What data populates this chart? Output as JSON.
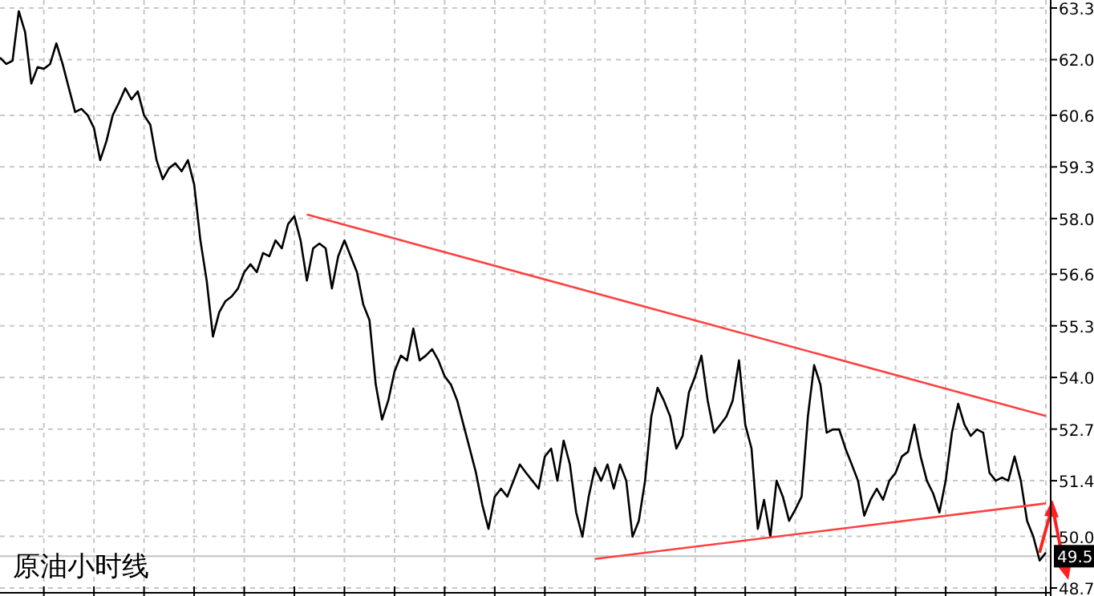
{
  "chart_data": {
    "type": "line",
    "title": "原油小时线",
    "series": [
      {
        "color": "#000000",
        "values": [
          62.05,
          61.89,
          61.97,
          63.22,
          62.7,
          61.4,
          61.81,
          61.77,
          61.89,
          62.41,
          61.89,
          61.28,
          60.68,
          60.76,
          60.6,
          60.28,
          59.47,
          59.95,
          60.6,
          60.92,
          61.28,
          61.0,
          61.2,
          60.6,
          60.36,
          59.47,
          58.99,
          59.27,
          59.39,
          59.19,
          59.47,
          58.86,
          57.45,
          56.44,
          55.03,
          55.64,
          55.92,
          56.04,
          56.24,
          56.65,
          56.85,
          56.65,
          57.13,
          57.05,
          57.45,
          57.25,
          57.86,
          58.06,
          57.45,
          56.44,
          57.25,
          57.37,
          57.25,
          56.24,
          57.05,
          57.45,
          57.05,
          56.65,
          55.84,
          55.44,
          53.82,
          52.94,
          53.42,
          54.15,
          54.55,
          54.43,
          55.23,
          54.43,
          54.55,
          54.71,
          54.43,
          54.03,
          53.82,
          53.42,
          52.81,
          52.21,
          51.6,
          50.8,
          50.19,
          51.0,
          51.2,
          51.0,
          51.4,
          51.81,
          51.6,
          51.4,
          51.2,
          52.01,
          52.21,
          51.4,
          52.41,
          51.81,
          50.6,
          49.99,
          51.0,
          51.73,
          51.4,
          51.81,
          51.2,
          51.81,
          51.4,
          49.99,
          50.39,
          51.4,
          53.02,
          53.74,
          53.42,
          53.02,
          52.21,
          52.53,
          53.62,
          54.03,
          54.55,
          53.42,
          52.61,
          52.81,
          53.02,
          53.42,
          54.43,
          52.81,
          52.21,
          50.19,
          50.92,
          49.99,
          51.4,
          51.0,
          50.39,
          50.68,
          51.0,
          53.02,
          54.31,
          53.82,
          52.61,
          52.69,
          52.69,
          52.21,
          51.81,
          51.4,
          50.52,
          50.92,
          51.2,
          50.92,
          51.4,
          51.6,
          52.01,
          52.13,
          52.81,
          52.01,
          51.4,
          51.08,
          50.6,
          51.4,
          52.61,
          53.34,
          52.81,
          52.53,
          52.69,
          52.61,
          51.6,
          51.4,
          51.48,
          51.4,
          52.01,
          51.4,
          50.39,
          49.99,
          49.39,
          49.59
        ]
      },
      {
        "color": "#ff4040",
        "values": [
          null,
          null,
          null,
          null,
          null,
          null,
          null,
          null,
          null,
          null,
          null,
          null,
          null,
          null,
          null,
          null,
          null,
          null,
          null,
          null,
          null,
          null,
          null,
          null,
          null,
          null,
          null,
          null,
          null,
          null,
          null,
          null,
          null,
          null,
          null,
          null,
          null,
          null,
          null,
          null,
          null,
          null,
          null,
          null,
          null,
          null,
          null,
          null,
          null,
          58.1,
          null,
          null,
          null,
          null,
          null,
          null,
          null,
          null,
          null,
          null,
          null,
          null,
          null,
          null,
          null,
          null,
          null,
          null,
          null,
          null,
          null,
          null,
          null,
          null,
          null,
          null,
          null,
          null,
          null,
          null,
          null,
          null,
          null,
          null,
          null,
          null,
          null,
          null,
          null,
          null,
          null,
          null,
          null,
          null,
          null,
          null,
          null,
          null,
          null,
          null,
          null,
          null,
          null,
          null,
          null,
          null,
          null,
          null,
          null,
          null,
          null,
          null,
          null,
          null,
          null,
          null,
          null,
          null,
          null,
          null,
          null,
          null,
          null,
          null,
          null,
          null,
          null,
          null,
          null,
          null,
          null,
          null,
          null,
          null,
          null,
          null,
          null,
          null,
          null,
          null,
          null,
          null,
          null,
          null,
          null,
          null,
          null,
          null,
          null,
          null,
          null,
          null,
          null,
          null,
          null,
          null,
          null,
          null,
          null,
          null,
          null,
          null,
          null,
          null,
          null,
          null,
          null,
          53.03
        ]
      },
      {
        "color": "#ff4040",
        "values": [
          null,
          null,
          null,
          null,
          null,
          null,
          null,
          null,
          null,
          null,
          null,
          null,
          null,
          null,
          null,
          null,
          null,
          null,
          null,
          null,
          null,
          null,
          null,
          null,
          null,
          null,
          null,
          null,
          null,
          null,
          null,
          null,
          null,
          null,
          null,
          null,
          null,
          null,
          null,
          null,
          null,
          null,
          null,
          null,
          null,
          null,
          null,
          null,
          null,
          null,
          null,
          null,
          null,
          null,
          null,
          null,
          null,
          null,
          null,
          null,
          null,
          null,
          null,
          null,
          null,
          null,
          null,
          null,
          null,
          null,
          null,
          null,
          null,
          null,
          null,
          null,
          null,
          null,
          null,
          null,
          null,
          null,
          null,
          null,
          null,
          null,
          null,
          null,
          null,
          null,
          null,
          null,
          null,
          null,
          null,
          49.43,
          null,
          null,
          null,
          null,
          null,
          null,
          null,
          null,
          null,
          null,
          null,
          null,
          null,
          null,
          null,
          null,
          null,
          null,
          null,
          null,
          null,
          null,
          null,
          null,
          null,
          null,
          null,
          null,
          null,
          null,
          null,
          null,
          null,
          null,
          null,
          null,
          null,
          null,
          null,
          null,
          null,
          null,
          null,
          null,
          null,
          null,
          null,
          null,
          null,
          null,
          null,
          null,
          null,
          null,
          null,
          null,
          null,
          null,
          null,
          null,
          null,
          null,
          null,
          null,
          null,
          null,
          null,
          null,
          null,
          null,
          null,
          50.83
        ]
      }
    ],
    "categories": [
      null,
      null,
      null,
      null,
      null,
      null,
      null,
      null,
      null,
      null,
      null,
      null,
      null,
      null,
      null,
      null,
      null,
      null,
      null,
      null,
      null,
      null,
      null,
      null,
      null,
      null,
      null,
      null,
      null,
      null,
      null,
      null,
      null,
      null,
      null,
      null,
      null,
      null,
      null,
      null,
      null,
      null,
      null,
      null,
      null,
      null,
      null,
      null,
      null,
      null,
      null,
      null,
      null,
      null,
      null,
      null,
      null,
      null,
      null,
      null,
      null,
      null,
      null,
      null,
      null,
      null,
      null,
      null,
      null,
      null,
      null,
      null,
      null,
      null,
      null,
      null,
      null,
      null,
      null,
      null,
      null,
      null,
      null,
      null,
      null,
      null,
      null,
      null,
      null,
      null,
      null,
      null,
      null,
      null,
      null,
      null,
      null,
      null,
      null,
      null,
      null,
      null,
      null,
      null,
      null,
      null,
      null,
      null,
      null,
      null,
      null,
      null,
      null,
      null,
      null,
      null,
      null,
      null,
      null,
      null,
      null,
      null,
      null,
      null,
      null,
      null,
      null,
      null,
      null,
      null,
      null,
      null,
      null,
      null,
      null,
      null,
      null,
      null,
      null,
      null,
      null,
      null,
      null,
      null,
      null,
      null,
      null,
      null,
      null,
      null,
      null,
      null,
      null,
      null,
      null,
      null,
      null,
      null,
      null,
      null,
      null,
      null,
      null,
      null,
      null,
      null,
      null,
      null
    ],
    "ylim": [
      48.7,
      63.3
    ],
    "yticks": [
      48.7,
      {
        "value": 50,
        "label": "50.0"
      },
      51.4,
      52.7,
      {
        "value": 54,
        "label": "54.0"
      },
      55.3,
      56.6,
      {
        "value": 58,
        "label": "58.0"
      },
      59.3,
      60.6,
      {
        "value": 62,
        "label": "62.0"
      },
      63.3
    ],
    "tick_labels": "y",
    "grid": true,
    "ref_lines": [
      {
        "axis": "y",
        "value": 49.5,
        "label": "49.5",
        "color": "#c0c0c0"
      }
    ]
  }
}
